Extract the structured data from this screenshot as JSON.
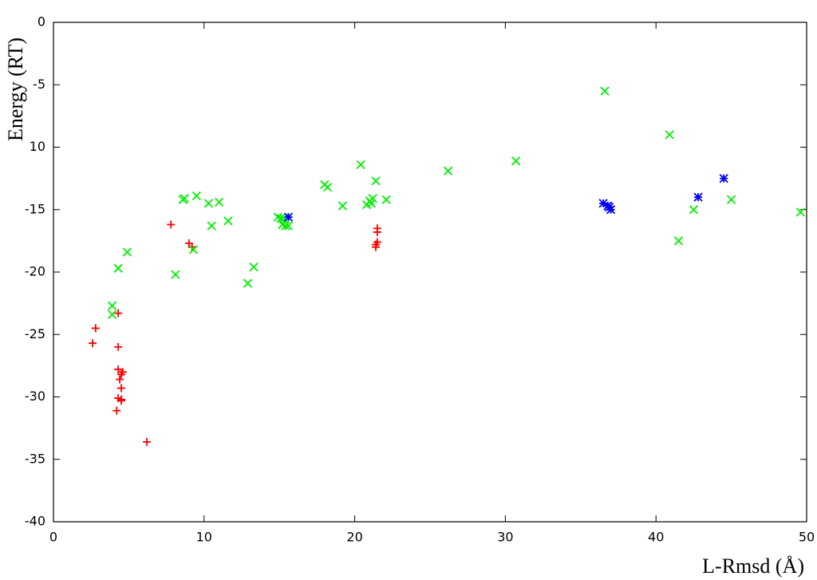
{
  "chart_data": {
    "type": "scatter",
    "xlabel": "L-Rmsd (Å)",
    "ylabel": "Energy (RT)",
    "xlim": [
      0,
      50
    ],
    "ylim": [
      -40,
      0
    ],
    "xticks": [
      0,
      10,
      20,
      30,
      40,
      50
    ],
    "yticks": [
      0,
      -5,
      {
        "value": -10,
        "label": "10"
      },
      -15,
      -20,
      -25,
      -30,
      -35,
      -40
    ],
    "grid": false,
    "series": [
      {
        "color": "#ff0000",
        "marker": "+",
        "x": [
          2.6,
          2.8,
          4.3,
          4.3,
          4.3,
          4.5,
          4.6,
          4.4,
          4.5,
          4.3,
          4.5,
          4.5,
          4.2,
          6.2,
          7.8,
          9.0,
          9.2,
          21.5,
          21.5,
          21.5,
          21.4,
          21.4
        ],
        "values": [
          -25.7,
          -24.5,
          -23.3,
          -26,
          -27.8,
          -28.2,
          -28,
          -28.6,
          -29.3,
          -30.1,
          -30.2,
          -30.3,
          -31.1,
          -33.6,
          -16.2,
          -17.7,
          -18,
          -16.5,
          -16.8,
          -17.6,
          -17.8,
          -18
        ]
      },
      {
        "color": "#00ee00",
        "marker": "x",
        "x": [
          3.9,
          3.9,
          4.3,
          4.9,
          8.1,
          8.6,
          8.7,
          9.5,
          9.3,
          10.3,
          10.5,
          11.0,
          11.6,
          12.9,
          13.3,
          14.9,
          15.1,
          15.2,
          15.4,
          15.3,
          15.6,
          18.0,
          18.2,
          19.2,
          20.4,
          20.8,
          21.0,
          21.1,
          21.2,
          21.4,
          22.1,
          26.2,
          30.7,
          36.6,
          40.9,
          41.5,
          42.5,
          45.0,
          49.6
        ],
        "values": [
          -22.7,
          -23.4,
          -19.7,
          -18.4,
          -20.2,
          -14.2,
          -14.1,
          -13.9,
          -18.2,
          -14.5,
          -16.3,
          -14.4,
          -15.9,
          -20.9,
          -19.6,
          -15.6,
          -15.7,
          -16.2,
          -16.3,
          -15.7,
          -16.3,
          -13.0,
          -13.2,
          -14.7,
          -11.4,
          -14.6,
          -14.3,
          -14.5,
          -14.1,
          -12.7,
          -14.2,
          -11.9,
          -11.1,
          -5.5,
          -9.0,
          -17.5,
          -15.0,
          -14.2,
          -15.2
        ]
      },
      {
        "color": "#0000ee",
        "marker": "*",
        "x": [
          15.6,
          36.5,
          36.8,
          37.0,
          36.9,
          42.8,
          44.5
        ],
        "values": [
          -15.6,
          -14.5,
          -14.7,
          -15.0,
          -14.8,
          -14.0,
          -12.5
        ]
      }
    ]
  }
}
